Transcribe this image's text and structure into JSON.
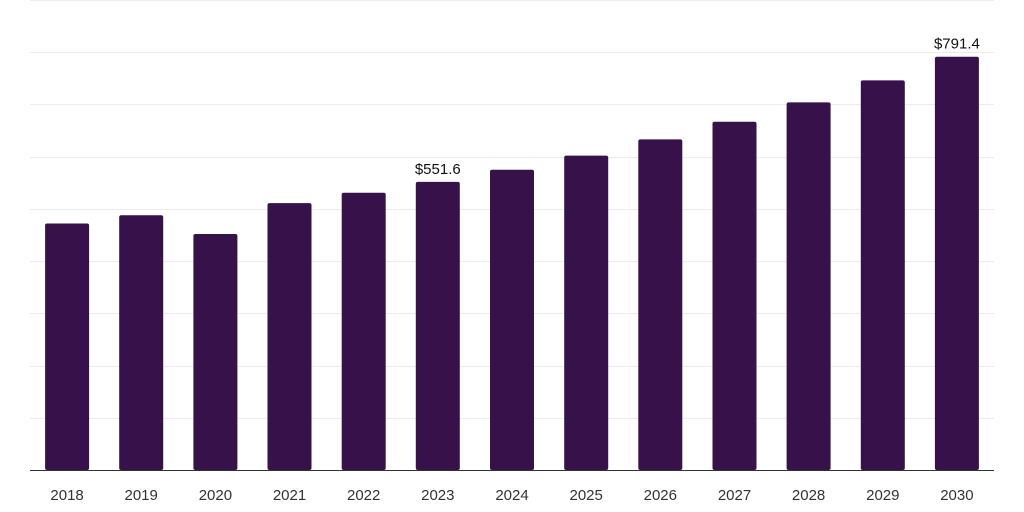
{
  "colors": {
    "bar": "#36114a",
    "grid": "#ececec",
    "axis": "#333333"
  },
  "chart_data": {
    "type": "bar",
    "title": "",
    "xlabel": "",
    "ylabel": "",
    "grid": true,
    "legend": "none",
    "ylim": [
      0,
      900
    ],
    "categories": [
      "2018",
      "2019",
      "2020",
      "2021",
      "2022",
      "2023",
      "2024",
      "2025",
      "2026",
      "2027",
      "2028",
      "2029",
      "2030"
    ],
    "values": [
      472,
      488,
      452,
      511,
      531,
      551.6,
      575,
      602,
      633,
      667,
      704,
      746,
      791.4
    ],
    "data_labels": [
      "",
      "",
      "",
      "",
      "",
      "$551.6",
      "",
      "",
      "",
      "",
      "",
      "",
      "$791.4"
    ]
  }
}
